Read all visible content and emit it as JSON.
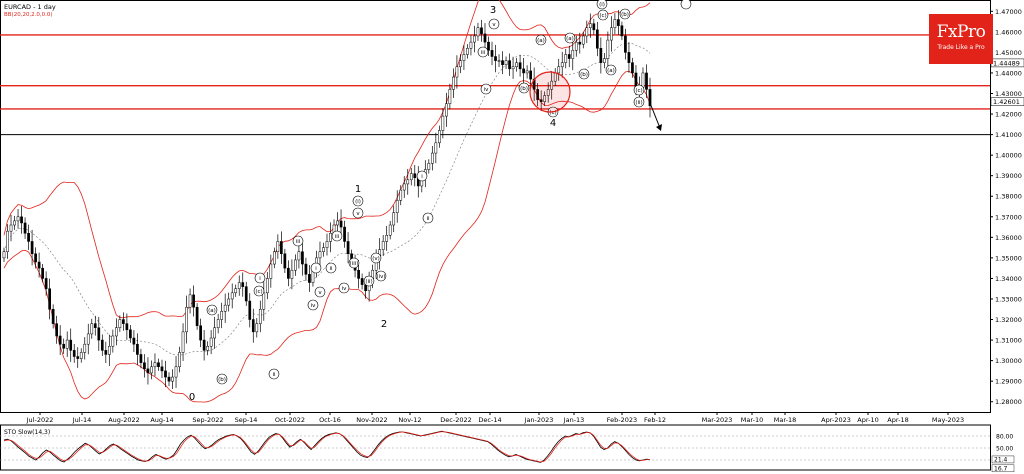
{
  "header": {
    "symbol_title": "EURCAD - 1 day",
    "indicator_bb": "BB(20,20,2.0,0.0)",
    "indicator_sto": "STO Slow(14,3)"
  },
  "logo": {
    "brand": "FxPro",
    "tagline": "Trade Like a Pro"
  },
  "colors": {
    "candle": "#000000",
    "bollinger": "#e2231a",
    "mid_band": "#777777",
    "support_resistance": "#e2231a",
    "stochastic": "#000000",
    "stochastic_signal": "#e2231a"
  },
  "chart_data": [
    {
      "type": "candlestick",
      "title": "EURCAD - 1 day",
      "x_tick_labels": [
        "Jul-2022",
        "Jul-14",
        "Aug-2022",
        "Aug-14",
        "Sep-2022",
        "Sep-14",
        "Oct-2022",
        "Oct-16",
        "Nov-2022",
        "Nov-12",
        "Dec-2022",
        "Dec-14",
        "Jan-2023",
        "Jan-13",
        "Feb-2023",
        "Feb-12",
        "Mar-2023",
        "Mar-10",
        "Mar-18",
        "Apr-2023",
        "Apr-10",
        "Apr-18",
        "May-2023"
      ],
      "y_tick_labels": [
        "1.47000",
        "1.46000",
        "1.45000",
        "1.44000",
        "1.43000",
        "1.42000",
        "1.41000",
        "1.40000",
        "1.39000",
        "1.38000",
        "1.37000",
        "1.36000",
        "1.35000",
        "1.34000",
        "1.33000",
        "1.32000",
        "1.31000",
        "1.30000",
        "1.29000",
        "1.28000"
      ],
      "ylim": [
        1.275,
        1.4755
      ],
      "price_labels": [
        "1.44489",
        "1.42601"
      ],
      "horizontal_levels": [
        {
          "value": 1.4585,
          "color": "#e2231a"
        },
        {
          "value": 1.4338,
          "color": "#e2231a"
        },
        {
          "value": 1.4225,
          "color": "#e2231a"
        },
        {
          "value": 1.41,
          "color": "#000000"
        }
      ],
      "close_series": [
        1.353,
        1.363,
        1.366,
        1.368,
        1.37,
        1.367,
        1.362,
        1.358,
        1.352,
        1.348,
        1.345,
        1.34,
        1.335,
        1.325,
        1.318,
        1.312,
        1.308,
        1.306,
        1.31,
        1.305,
        1.302,
        1.301,
        1.304,
        1.308,
        1.313,
        1.318,
        1.316,
        1.31,
        1.305,
        1.303,
        1.307,
        1.312,
        1.316,
        1.32,
        1.318,
        1.315,
        1.311,
        1.308,
        1.303,
        1.299,
        1.296,
        1.294,
        1.297,
        1.299,
        1.297,
        1.295,
        1.292,
        1.29,
        1.292,
        1.297,
        1.304,
        1.314,
        1.326,
        1.332,
        1.326,
        1.317,
        1.31,
        1.305,
        1.307,
        1.311,
        1.316,
        1.32,
        1.324,
        1.327,
        1.33,
        1.333,
        1.335,
        1.338,
        1.336,
        1.329,
        1.32,
        1.314,
        1.318,
        1.325,
        1.333,
        1.34,
        1.347,
        1.353,
        1.358,
        1.352,
        1.345,
        1.34,
        1.344,
        1.349,
        1.353,
        1.347,
        1.342,
        1.338,
        1.344,
        1.35,
        1.353,
        1.355,
        1.358,
        1.362,
        1.366,
        1.368,
        1.365,
        1.358,
        1.352,
        1.348,
        1.344,
        1.34,
        1.337,
        1.334,
        1.338,
        1.344,
        1.35,
        1.354,
        1.358,
        1.361,
        1.366,
        1.372,
        1.378,
        1.383,
        1.386,
        1.388,
        1.391,
        1.389,
        1.385,
        1.389,
        1.393,
        1.396,
        1.401,
        1.406,
        1.412,
        1.419,
        1.425,
        1.432,
        1.438,
        1.443,
        1.446,
        1.449,
        1.452,
        1.455,
        1.458,
        1.462,
        1.459,
        1.455,
        1.451,
        1.448,
        1.446,
        1.446,
        1.444,
        1.446,
        1.442,
        1.443,
        1.445,
        1.442,
        1.44,
        1.441,
        1.437,
        1.432,
        1.427,
        1.426,
        1.429,
        1.432,
        1.436,
        1.44,
        1.443,
        1.445,
        1.449,
        1.447,
        1.451,
        1.455,
        1.454,
        1.458,
        1.462,
        1.464,
        1.461,
        1.452,
        1.445,
        1.447,
        1.456,
        1.462,
        1.466,
        1.463,
        1.458,
        1.45,
        1.445,
        1.44,
        1.433,
        1.433,
        1.44,
        1.432,
        1.424
      ],
      "close_series_note": "",
      "bollinger_bands": "BB(20,20,2.0,0.0)",
      "wave_labels": [
        "3",
        "1",
        "2",
        "0",
        "4",
        "(a)",
        "(b)",
        "(c)",
        "(a)",
        "(b)",
        "(c)",
        "(a)",
        "(b)",
        "(c)",
        "(a)",
        "(b)",
        "(c)",
        "i",
        "ii",
        "iii",
        "iv",
        "v",
        "i",
        "ii",
        "iii",
        "iv",
        "v",
        "i",
        "ii",
        "iii",
        "iv",
        "v",
        "(i)",
        "(ii)",
        "(iii)",
        "(iv)",
        "(v)",
        "(i)",
        "(ii)"
      ]
    },
    {
      "type": "line",
      "title": "STO Slow(14,3)",
      "ylim": [
        0,
        100
      ],
      "y_tick_labels": [
        "80.00",
        "50.00",
        "20.00"
      ],
      "current_values": [
        "21.4",
        "16.7"
      ],
      "series": [
        {
          "values": [
            70,
            72,
            68,
            60,
            52,
            45,
            38,
            30,
            25,
            20,
            28,
            38,
            45,
            40,
            32,
            25,
            18,
            15,
            22,
            30,
            40,
            48,
            55,
            62,
            58,
            50,
            42,
            35,
            40,
            48,
            56,
            60,
            55,
            48,
            42,
            36,
            30,
            25,
            20,
            18,
            16,
            20,
            28,
            34,
            30,
            25,
            22,
            26,
            32,
            45,
            60,
            70,
            78,
            82,
            75,
            65,
            55,
            48,
            52,
            58,
            66,
            72,
            76,
            80,
            82,
            84,
            80,
            74,
            64,
            52,
            40,
            34,
            42,
            54,
            66,
            76,
            82,
            86,
            84,
            74,
            62,
            52,
            58,
            66,
            72,
            64,
            54,
            46,
            56,
            66,
            74,
            80,
            84,
            86,
            88,
            86,
            80,
            70,
            60,
            50,
            40,
            32,
            28,
            26,
            34,
            46,
            58,
            68,
            76,
            82,
            86,
            88,
            90,
            90,
            88,
            86,
            84,
            82,
            80,
            82,
            84,
            86,
            88,
            90,
            92,
            90,
            88,
            86,
            84,
            82,
            80,
            78,
            76,
            74,
            72,
            70,
            68,
            66,
            60,
            52,
            44,
            38,
            32,
            28,
            30,
            34,
            30,
            26,
            22,
            20,
            18,
            16,
            14,
            20,
            30,
            42,
            55,
            66,
            74,
            80,
            78,
            82,
            86,
            84,
            88,
            90,
            88,
            80,
            66,
            52,
            46,
            50,
            60,
            66,
            62,
            54,
            44,
            34,
            26,
            20,
            18,
            20,
            22,
            21
          ]
        },
        {
          "values": [
            68,
            70,
            69,
            64,
            56,
            49,
            42,
            34,
            28,
            24,
            25,
            32,
            40,
            42,
            36,
            29,
            22,
            18,
            20,
            26,
            34,
            43,
            51,
            58,
            58,
            53,
            46,
            39,
            39,
            45,
            52,
            58,
            57,
            51,
            45,
            39,
            33,
            28,
            23,
            19,
            17,
            18,
            24,
            31,
            31,
            27,
            24,
            25,
            29,
            38,
            52,
            65,
            74,
            80,
            78,
            70,
            60,
            51,
            51,
            55,
            62,
            69,
            74,
            78,
            81,
            83,
            81,
            76,
            67,
            56,
            45,
            37,
            39,
            49,
            61,
            72,
            79,
            84,
            84,
            77,
            66,
            56,
            56,
            63,
            70,
            66,
            57,
            49,
            52,
            62,
            71,
            78,
            82,
            85,
            87,
            86,
            81,
            73,
            63,
            53,
            44,
            36,
            31,
            28,
            31,
            41,
            53,
            64,
            73,
            80,
            84,
            87,
            89,
            90,
            89,
            87,
            85,
            83,
            81,
            81,
            83,
            85,
            87,
            89,
            91,
            90,
            89,
            87,
            85,
            83,
            81,
            79,
            77,
            75,
            73,
            71,
            69,
            67,
            62,
            55,
            47,
            40,
            35,
            31,
            30,
            32,
            31,
            28,
            24,
            21,
            19,
            17,
            15,
            17,
            25,
            36,
            49,
            60,
            70,
            77,
            78,
            80,
            84,
            84,
            86,
            89,
            88,
            82,
            70,
            57,
            49,
            49,
            56,
            63,
            62,
            56,
            47,
            38,
            30,
            23,
            19,
            19,
            21,
            21
          ]
        }
      ]
    }
  ]
}
